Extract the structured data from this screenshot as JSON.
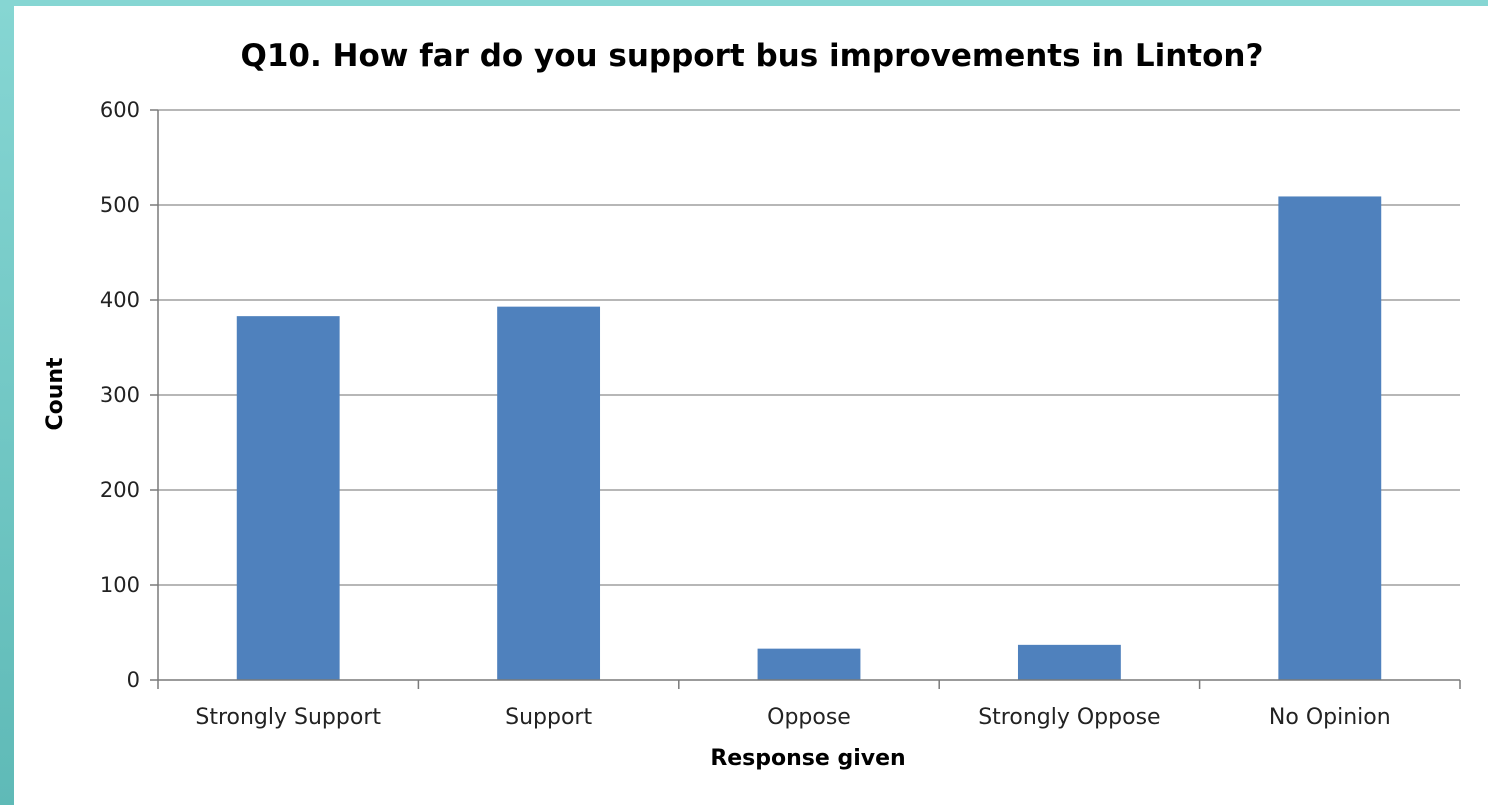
{
  "chart_data": {
    "type": "bar",
    "title": "Q10. How far do you support bus improvements in Linton?",
    "xlabel": "Response given",
    "ylabel": "Count",
    "categories": [
      "Strongly Support",
      "Support",
      "Oppose",
      "Strongly Oppose",
      "No Opinion"
    ],
    "values": [
      383,
      393,
      33,
      37,
      509
    ],
    "ylim": [
      0,
      600
    ],
    "yticks": [
      0,
      100,
      200,
      300,
      400,
      500,
      600
    ],
    "grid": true,
    "legend": "none",
    "bar_color": "#4f81bd"
  }
}
